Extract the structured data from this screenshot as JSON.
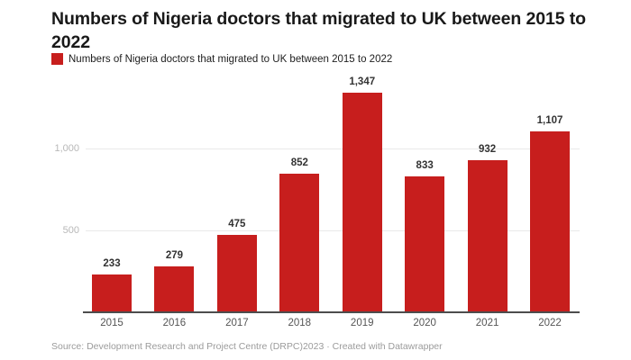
{
  "header": {
    "title": "Numbers of Nigeria doctors that migrated to UK between 2015 to 2022"
  },
  "legend": {
    "label": "Numbers of Nigeria doctors that migrated to UK between 2015 to 2022",
    "swatch_color": "#c71e1d"
  },
  "chart_data": {
    "type": "bar",
    "categories": [
      "2015",
      "2016",
      "2017",
      "2018",
      "2019",
      "2020",
      "2021",
      "2022"
    ],
    "values": [
      233,
      279,
      475,
      852,
      1347,
      833,
      932,
      1107
    ],
    "value_labels": [
      "233",
      "279",
      "475",
      "852",
      "1,347",
      "833",
      "932",
      "1,107"
    ],
    "title": "Numbers of Nigeria doctors that migrated to UK between 2015 to 2022",
    "xlabel": "",
    "ylabel": "",
    "ylim": [
      0,
      1390
    ],
    "yticks": [
      {
        "value": 500,
        "label": "500"
      },
      {
        "value": 1000,
        "label": "1,000"
      }
    ],
    "bar_color": "#c71e1d",
    "grid": "horizontal",
    "legend_position": "top-left"
  },
  "footer": {
    "source": "Source: Development Research and Project Centre (DRPC)2023 · Created with Datawrapper"
  }
}
